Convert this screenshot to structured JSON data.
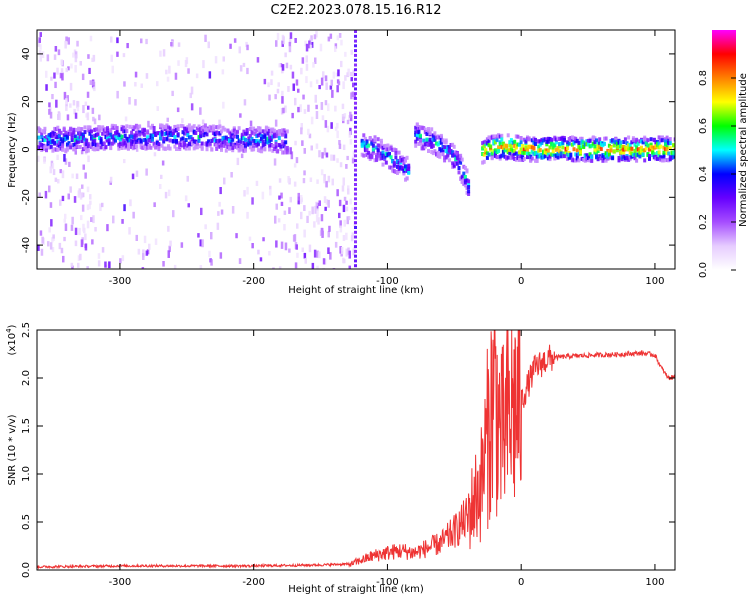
{
  "title": "C2E2.2023.078.15.16.R12",
  "chart_data": [
    {
      "type": "heatmap",
      "xlabel": "Height of straight line (km)",
      "ylabel": "Frequency (Hz)",
      "xlim": [
        -362,
        115
      ],
      "ylim": [
        -50,
        50
      ],
      "xticks": [
        -300,
        -200,
        -100,
        0,
        100
      ],
      "yticks": [
        -40,
        -20,
        0,
        20,
        40
      ],
      "colorbar": {
        "label": "Normalized spectral amplitude",
        "range": [
          0,
          1
        ],
        "ticks": [
          "0.0",
          "0.2",
          "0.4",
          "0.6",
          "0.8"
        ],
        "colors": [
          "#ffffff",
          "#e6ccff",
          "#a64dff",
          "#6600ff",
          "#0000ff",
          "#00ffff",
          "#00ff00",
          "#ffff00",
          "#ff8000",
          "#ff0000",
          "#ff00ff"
        ]
      },
      "ridges": [
        {
          "x": [
            -362,
            -330,
            -300,
            -270,
            -240,
            -210,
            -190,
            -175
          ],
          "y": [
            5,
            5,
            6,
            6,
            6,
            5,
            5,
            4
          ],
          "amplitude": 0.45
        },
        {
          "x": [
            -120,
            -110,
            -100,
            -95,
            -90,
            -85
          ],
          "y": [
            3,
            1,
            -2,
            -4,
            -6,
            -8
          ],
          "amplitude": 0.45
        },
        {
          "x": [
            -80,
            -70,
            -60,
            -50,
            -45,
            -40
          ],
          "y": [
            7,
            5,
            2,
            -3,
            -8,
            -15
          ],
          "amplitude": 0.45
        },
        {
          "x": [
            -30,
            -20,
            -10,
            0,
            10,
            20,
            40,
            60,
            80,
            100,
            115
          ],
          "y": [
            0,
            2,
            2,
            1,
            1,
            1,
            1,
            1,
            1,
            1,
            1
          ],
          "amplitude": 0.8
        }
      ]
    },
    {
      "type": "line",
      "xlabel": "Height of straight line (km)",
      "ylabel": "SNR (10 * v/v)",
      "multiplier": "(x10",
      "multiplier_exp": "4",
      "xlim": [
        -362,
        115
      ],
      "ylim": [
        0,
        25000
      ],
      "xticks": [
        -300,
        -200,
        -100,
        0,
        100
      ],
      "yticks": [
        0,
        5000,
        10000,
        15000,
        20000,
        25000
      ],
      "ytick_labels": [
        "0.0",
        "0.5",
        "1.0",
        "1.5",
        "2.0",
        "2.5"
      ],
      "series": [
        {
          "color": "#ee3333",
          "x": [
            -362,
            -300,
            -250,
            -200,
            -150,
            -130,
            -120,
            -110,
            -100,
            -90,
            -80,
            -70,
            -60,
            -50,
            -40,
            -30,
            -25,
            -20,
            -15,
            -10,
            -5,
            0,
            10,
            20,
            30,
            40,
            60,
            80,
            90,
            100,
            105,
            110,
            115
          ],
          "y": [
            200,
            300,
            300,
            300,
            400,
            500,
            1000,
            1500,
            1800,
            2000,
            1800,
            2300,
            2800,
            4000,
            5500,
            9000,
            14000,
            19000,
            13500,
            15500,
            17000,
            17500,
            21000,
            22000,
            22200,
            22300,
            22400,
            22500,
            22600,
            22400,
            21000,
            20000,
            20100
          ]
        }
      ]
    }
  ]
}
